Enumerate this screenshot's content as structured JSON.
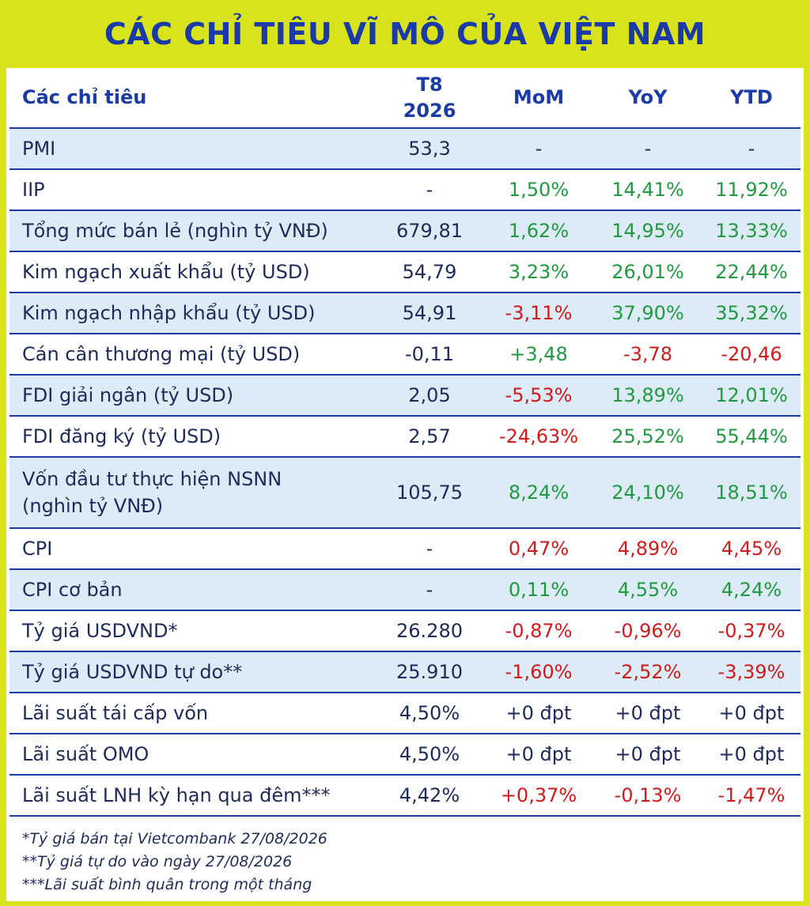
{
  "title": "CÁC CHỈ TIÊU VĨ MÔ CỦA VIỆT NAM",
  "header": {
    "indicator": "Các chỉ tiêu",
    "period_line1": "T8",
    "period_line2": "2026",
    "mom": "MoM",
    "yoy": "YoY",
    "ytd": "YTD"
  },
  "rows": [
    {
      "label": "PMI",
      "value": "53,3",
      "mom": "-",
      "yoy": "-",
      "ytd": "-"
    },
    {
      "label": "IIP",
      "value": "-",
      "mom": "1,50%",
      "yoy": "14,41%",
      "ytd": "11,92%"
    },
    {
      "label": "Tổng mức bán lẻ (nghìn tỷ VNĐ)",
      "value": "679,81",
      "mom": "1,62%",
      "yoy": "14,95%",
      "ytd": "13,33%"
    },
    {
      "label": "Kim ngạch xuất khẩu (tỷ USD)",
      "value": "54,79",
      "mom": "3,23%",
      "yoy": "26,01%",
      "ytd": "22,44%"
    },
    {
      "label": "Kim ngạch nhập khẩu (tỷ USD)",
      "value": "54,91",
      "mom": "-3,11%",
      "yoy": "37,90%",
      "ytd": "35,32%"
    },
    {
      "label": "Cán cân thương mại (tỷ USD)",
      "value": "-0,11",
      "mom": "+3,48",
      "yoy": "-3,78",
      "ytd": "-20,46"
    },
    {
      "label": "FDI giải ngân (tỷ USD)",
      "value": "2,05",
      "mom": "-5,53%",
      "yoy": "13,89%",
      "ytd": "12,01%"
    },
    {
      "label": "FDI đăng ký (tỷ USD)",
      "value": "2,57",
      "mom": "-24,63%",
      "yoy": "25,52%",
      "ytd": "55,44%"
    },
    {
      "label_line1": "Vốn đầu tư thực hiện NSNN",
      "label_line2": "(nghìn tỷ VNĐ)",
      "value": "105,75",
      "mom": "8,24%",
      "yoy": "24,10%",
      "ytd": "18,51%"
    },
    {
      "label": "CPI",
      "value": "-",
      "mom": "0,47%",
      "yoy": "4,89%",
      "ytd": "4,45%"
    },
    {
      "label": "CPI cơ bản",
      "value": "-",
      "mom": "0,11%",
      "yoy": "4,55%",
      "ytd": "4,24%"
    },
    {
      "label": "Tỷ giá USDVND*",
      "value": "26.280",
      "mom": "-0,87%",
      "yoy": "-0,96%",
      "ytd": "-0,37%"
    },
    {
      "label": "Tỷ giá USDVND tự do**",
      "value": "25.910",
      "mom": "-1,60%",
      "yoy": "-2,52%",
      "ytd": "-3,39%"
    },
    {
      "label": "Lãi suất tái cấp vốn",
      "value": "4,50%",
      "mom": "+0 đpt",
      "yoy": "+0 đpt",
      "ytd": "+0 đpt"
    },
    {
      "label": "Lãi suất OMO",
      "value": "4,50%",
      "mom": "+0 đpt",
      "yoy": "+0 đpt",
      "ytd": "+0 đpt"
    },
    {
      "label": "Lãi suất LNH kỳ hạn qua đêm***",
      "value": "4,42%",
      "mom": "+0,37%",
      "yoy": "-0,13%",
      "ytd": "-1,47%"
    }
  ],
  "notes": [
    "*Tỷ giá bán tại Vietcombank 27/08/2026",
    "**Tỷ giá tự do vào ngày 27/08/2026",
    "***Lãi suất bình quân trong một tháng"
  ],
  "colors": {
    "banner": "#d9e31b",
    "heading_blue": "#1a3aa8",
    "positive_green": "#1f9a3e",
    "negative_red": "#d11a1a",
    "row_stripe": "#dcebf6"
  }
}
